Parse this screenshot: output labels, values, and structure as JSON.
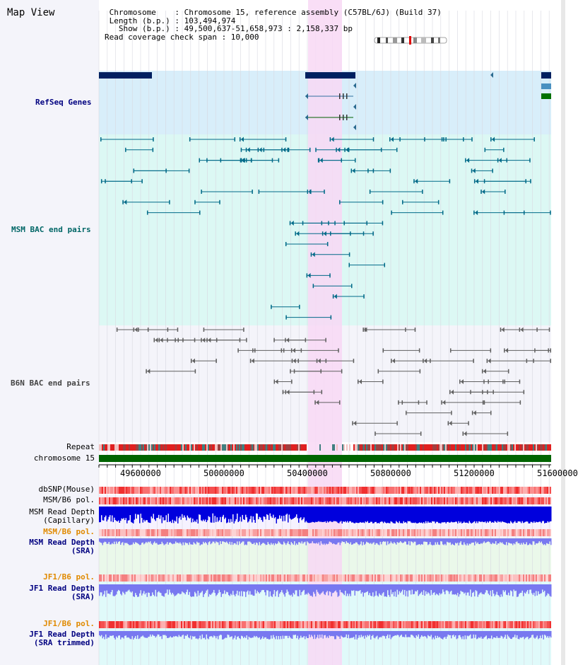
{
  "header": {
    "title": "Map View",
    "info_lines": [
      " Chromosome    : Chromosome 15, reference assembly (C57BL/6J) (Build 37)",
      " Length (b.p.) : 103,494,974",
      "   Show (b.p.) : 49,500,637-51,658,973 : 2,158,337 bp",
      "Read coverage check span : 10,000"
    ]
  },
  "colors": {
    "highlight": "#f8d8f4",
    "refseq_bg": "#d8eefa",
    "msm_bg": "#dcf8f4",
    "b6n_bg": "#f4f4fa",
    "gene_dark": "#002060",
    "msm_pair": "#006a88",
    "b6n_pair": "#606060",
    "ruler": "#006400",
    "depth_blue": "#0000dd",
    "depth_light": "#7878f0",
    "snp_red": "#f03030"
  },
  "tracks": {
    "refseq": "RefSeq Genes",
    "msm_bac": "MSM BAC end pairs",
    "b6n_bac": "B6N BAC end pairs",
    "repeat": "Repeat",
    "chromosome": "chromosome 15",
    "dbsnp": "dbSNP(Mouse)",
    "msm_b6_pol_1": "MSM/B6 pol.",
    "msm_depth_cap_1": "MSM Read Depth",
    "msm_depth_cap_2": "(Capillary)",
    "msm_b6_pol_2": "MSM/B6 pol.",
    "msm_depth_sra_1": "MSM Read Depth",
    "msm_depth_sra_2": "(SRA)",
    "jf1_b6_pol_1": "JF1/B6 pol.",
    "jf1_depth_1": "JF1 Read Depth",
    "jf1_depth_2": "(SRA)",
    "jf1_b6_pol_2": "JF1/B6 pol.",
    "jf1_depth_trim_1": "JF1 Read Depth",
    "jf1_depth_trim_2": "(SRA trimmed)"
  },
  "ruler": {
    "ticks": [
      "49600000",
      "50000000",
      "50400000",
      "50800000",
      "51200000",
      "51600000"
    ]
  }
}
